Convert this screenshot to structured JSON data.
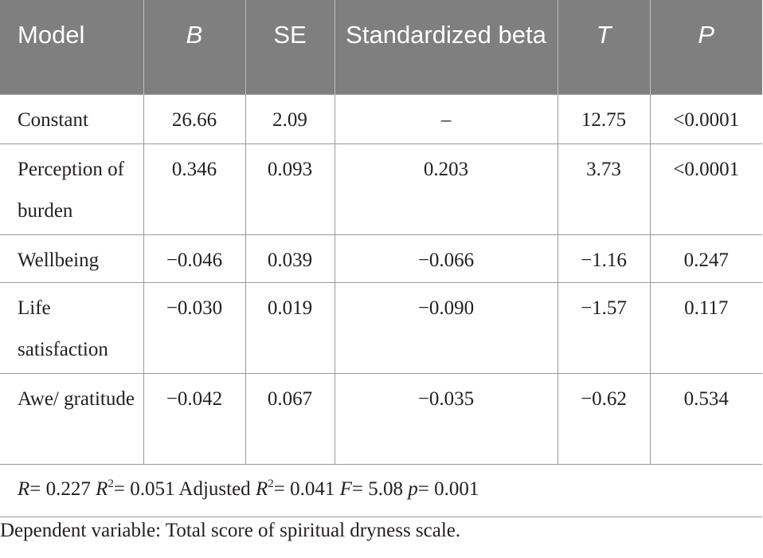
{
  "table": {
    "headers": {
      "model": "Model",
      "b": "B",
      "se": "SE",
      "std_beta": "Standardized beta",
      "t": "T",
      "p": "P"
    },
    "rows": [
      {
        "model": "Constant",
        "b": "26.66",
        "se": "2.09",
        "std_beta": "–",
        "t": "12.75",
        "p": "<0.0001"
      },
      {
        "model": "Perception of burden",
        "b": "0.346",
        "se": "0.093",
        "std_beta": "0.203",
        "t": "3.73",
        "p": "<0.0001"
      },
      {
        "model": "Wellbeing",
        "b": "−0.046",
        "se": "0.039",
        "std_beta": "−0.066",
        "t": "−1.16",
        "p": "0.247"
      },
      {
        "model": "Life satisfaction",
        "b": "−0.030",
        "se": "0.019",
        "std_beta": "−0.090",
        "t": "−1.57",
        "p": "0.117"
      },
      {
        "model": "Awe/ gratitude",
        "b": "−0.042",
        "se": "0.067",
        "std_beta": "−0.035",
        "t": "−0.62",
        "p": "0.534"
      }
    ],
    "summary": {
      "r_label": "R",
      "r_value": "= 0.227",
      "r2_label": "R",
      "r2_sup": "2",
      "r2_value": "= 0.051",
      "adj_label": "Adjusted",
      "adj_r_label": "R",
      "adj_r_sup": "2",
      "adj_value": "= 0.041",
      "f_label": "F",
      "f_value": "= 5.08",
      "p_label": "p",
      "p_value": "= 0.001"
    }
  },
  "footnote": "Dependent variable: Total score of spiritual dryness scale."
}
